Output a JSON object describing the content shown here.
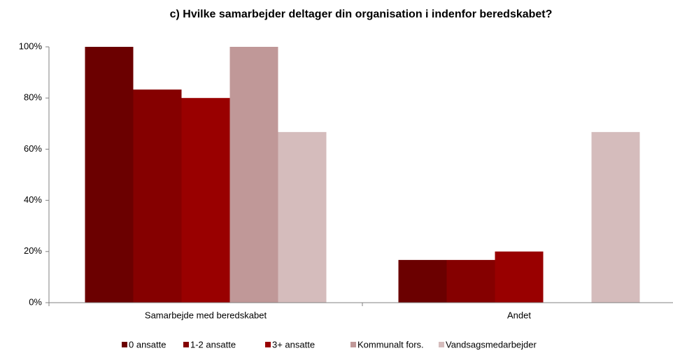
{
  "chart_data": {
    "type": "bar",
    "title": "c) Hvilke samarbejder deltager din organisation i indenfor beredskabet?",
    "categories": [
      "Samarbejde med beredskabet",
      "Andet"
    ],
    "series": [
      {
        "name": "0 ansatte",
        "color": "#6b0000",
        "values": [
          100,
          16.7
        ]
      },
      {
        "name": "1-2 ansatte",
        "color": "#850000",
        "values": [
          83.3,
          16.7
        ]
      },
      {
        "name": "3+ ansatte",
        "color": "#990000",
        "values": [
          80,
          20
        ]
      },
      {
        "name": "Kommunalt fors.",
        "color": "#c09898",
        "values": [
          100,
          0
        ]
      },
      {
        "name": "Vandsagsmedarbejder",
        "color": "#d5bcbc",
        "values": [
          66.7,
          66.7
        ]
      }
    ],
    "ylim": [
      0,
      100
    ],
    "yticks": [
      {
        "value": 0,
        "label": "0%"
      },
      {
        "value": 20,
        "label": "20%"
      },
      {
        "value": 40,
        "label": "40%"
      },
      {
        "value": 60,
        "label": "60%"
      },
      {
        "value": 80,
        "label": "80%"
      },
      {
        "value": 100,
        "label": "100%"
      }
    ],
    "legend": "bottom"
  }
}
